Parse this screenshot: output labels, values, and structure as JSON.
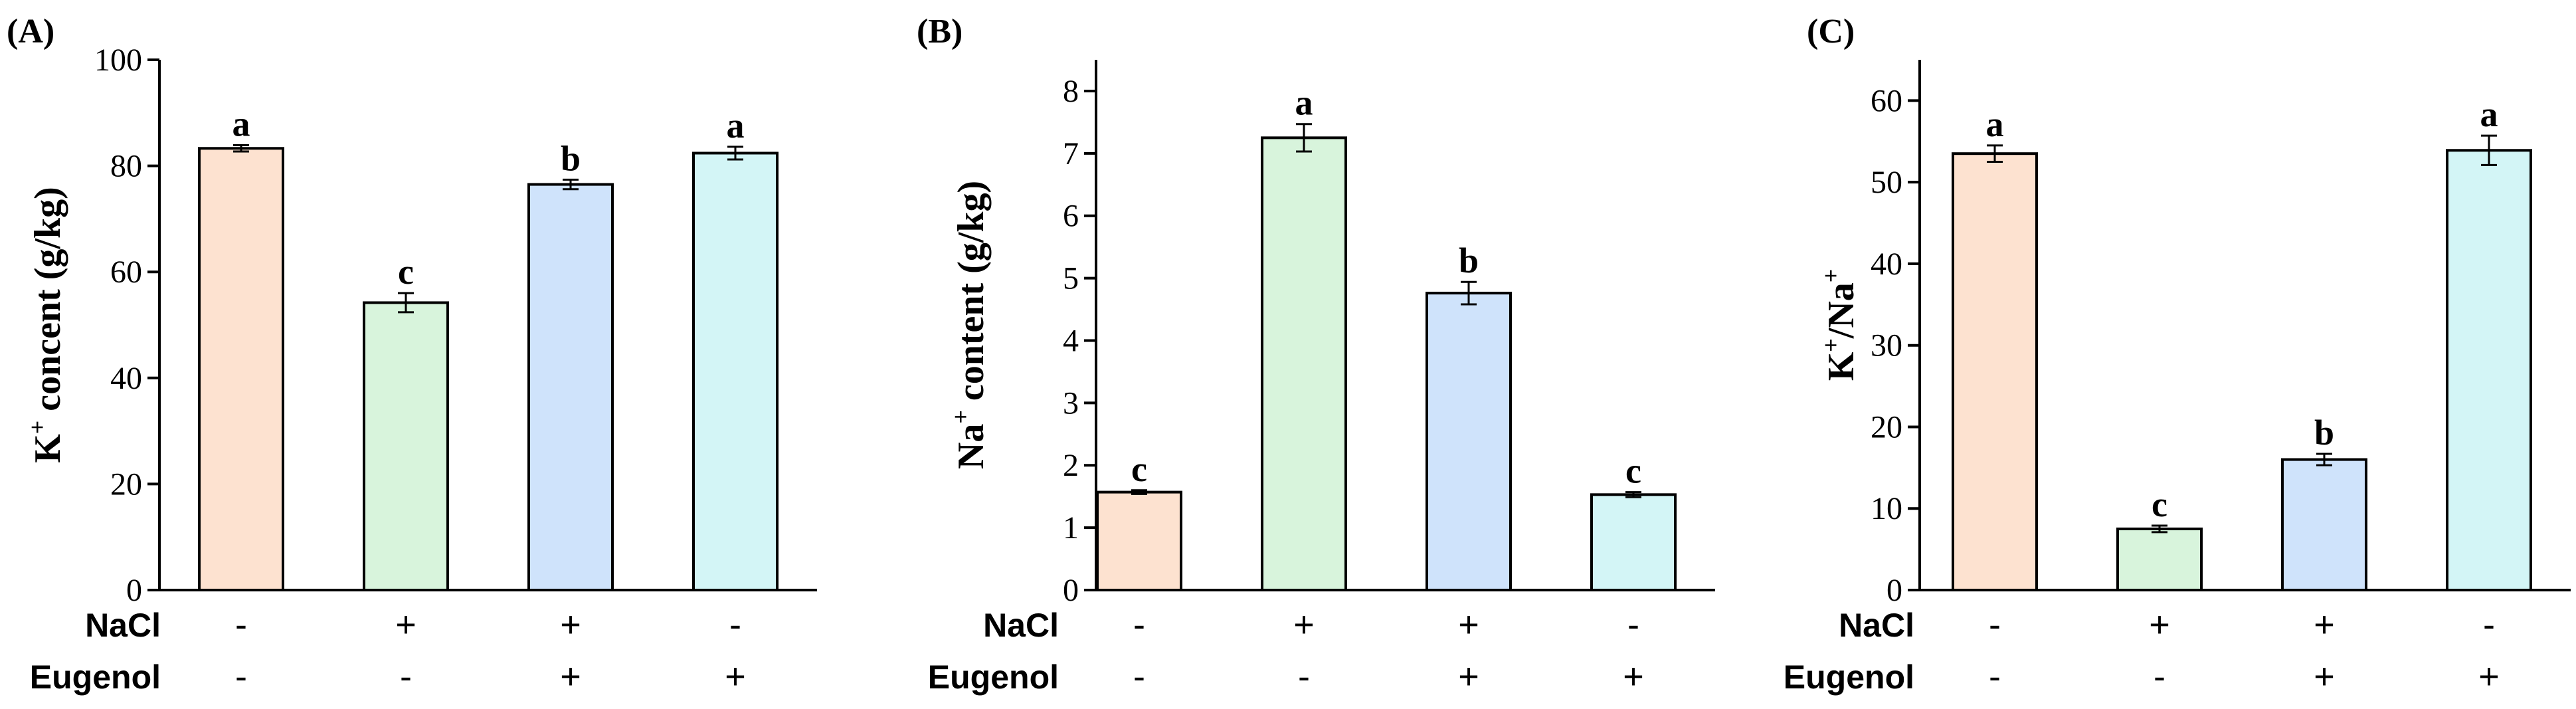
{
  "figure": {
    "treatments": {
      "rows": [
        {
          "name": "NaCl",
          "signs": [
            "-",
            "+",
            "+",
            "-"
          ]
        },
        {
          "name": "Eugenol",
          "signs": [
            "-",
            "-",
            "+",
            "+"
          ]
        }
      ]
    },
    "bar_colors": [
      "#FDE2D0",
      "#D8F4DC",
      "#CFE3FB",
      "#D3F5F6"
    ]
  },
  "chart_data": [
    {
      "type": "bar",
      "panel_label": "(A)",
      "ylabel_main": "K",
      "ylabel_sup": "+",
      "ylabel_rest": " concent (g/kg)",
      "ylim": [
        0,
        100
      ],
      "yticks": [
        0,
        20,
        40,
        60,
        80,
        100
      ],
      "values": [
        83.3,
        54.2,
        76.5,
        82.4
      ],
      "errors": [
        0.6,
        1.8,
        0.9,
        1.2
      ],
      "letters": [
        "a",
        "c",
        "b",
        "a"
      ]
    },
    {
      "type": "bar",
      "panel_label": "(B)",
      "ylabel_main": "Na",
      "ylabel_sup": "+",
      "ylabel_rest": " content (g/kg)",
      "ylim": [
        0,
        8.5
      ],
      "yticks": [
        0,
        1,
        2,
        3,
        4,
        5,
        6,
        7,
        8
      ],
      "values": [
        1.57,
        7.25,
        4.76,
        1.53
      ],
      "errors": [
        0.03,
        0.22,
        0.18,
        0.04
      ],
      "letters": [
        "c",
        "a",
        "b",
        "c"
      ]
    },
    {
      "type": "bar",
      "panel_label": "(C)",
      "ylabel_main": "K",
      "ylabel_sup": "+",
      "ylabel_rest": "/Na",
      "ylabel_sup2": "+",
      "ylim": [
        0,
        65
      ],
      "yticks": [
        0,
        10,
        20,
        30,
        40,
        50,
        60
      ],
      "values": [
        53.5,
        7.5,
        16.0,
        53.9
      ],
      "errors": [
        1.0,
        0.4,
        0.7,
        1.8
      ],
      "letters": [
        "a",
        "c",
        "b",
        "a"
      ]
    }
  ]
}
